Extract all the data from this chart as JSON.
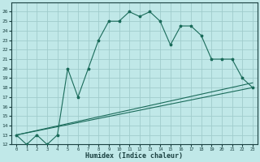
{
  "title": "",
  "xlabel": "Humidex (Indice chaleur)",
  "bg_color": "#c0e8e8",
  "grid_color": "#a0cccc",
  "line_color": "#1a6b5a",
  "text_color": "#1a4040",
  "xlim": [
    -0.5,
    23.5
  ],
  "ylim": [
    12,
    27
  ],
  "xticks": [
    0,
    1,
    2,
    3,
    4,
    5,
    6,
    7,
    8,
    9,
    10,
    11,
    12,
    13,
    14,
    15,
    16,
    17,
    18,
    19,
    20,
    21,
    22,
    23
  ],
  "yticks": [
    12,
    13,
    14,
    15,
    16,
    17,
    18,
    19,
    20,
    21,
    22,
    23,
    24,
    25,
    26
  ],
  "series1_x": [
    0,
    1,
    2,
    3,
    4,
    5,
    6,
    7,
    8,
    9,
    10,
    11,
    12,
    13,
    14,
    15,
    16,
    17,
    18,
    19,
    20,
    21,
    22,
    23
  ],
  "series1_y": [
    13,
    12,
    13,
    12,
    13,
    20,
    17,
    20,
    23,
    25,
    25,
    26,
    25.5,
    26,
    25,
    22.5,
    24.5,
    24.5,
    23.5,
    21,
    21,
    21,
    19,
    18
  ],
  "series2_x": [
    0,
    23
  ],
  "series2_y": [
    13,
    18
  ],
  "series3_x": [
    0,
    23
  ],
  "series3_y": [
    13,
    18.5
  ]
}
